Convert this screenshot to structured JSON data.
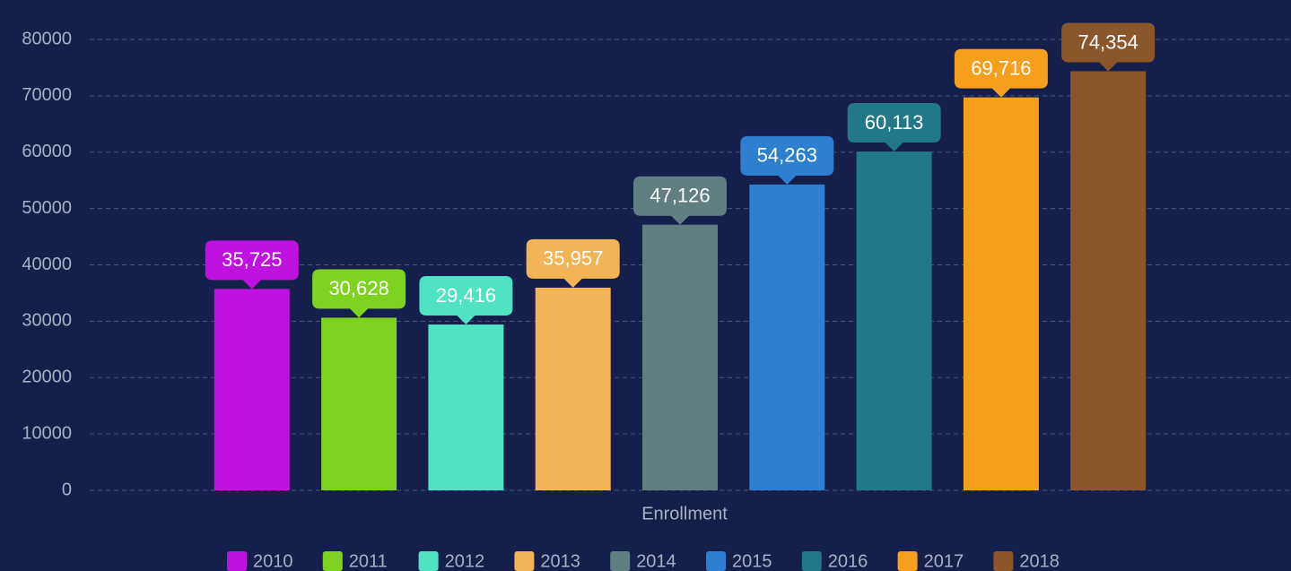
{
  "chart_data": {
    "type": "bar",
    "categories": [
      "Enrollment"
    ],
    "series": [
      {
        "name": "2010",
        "color": "#bf12e0",
        "values": [
          35725
        ],
        "value_labels": [
          "35,725"
        ]
      },
      {
        "name": "2011",
        "color": "#7ed321",
        "values": [
          30628
        ],
        "value_labels": [
          "30,628"
        ]
      },
      {
        "name": "2012",
        "color": "#50e3c2",
        "values": [
          29416
        ],
        "value_labels": [
          "29,416"
        ]
      },
      {
        "name": "2013",
        "color": "#f2b455",
        "values": [
          35957
        ],
        "value_labels": [
          "35,957"
        ]
      },
      {
        "name": "2014",
        "color": "#617e81",
        "values": [
          47126
        ],
        "value_labels": [
          "47,126"
        ]
      },
      {
        "name": "2015",
        "color": "#2e7fd0",
        "values": [
          54263
        ],
        "value_labels": [
          "54,263"
        ]
      },
      {
        "name": "2016",
        "color": "#22778a",
        "values": [
          60113
        ],
        "value_labels": [
          "60,113"
        ]
      },
      {
        "name": "2017",
        "color": "#f89e1d",
        "values": [
          69716
        ],
        "value_labels": [
          "69,716"
        ]
      },
      {
        "name": "2018",
        "color": "#8b572a",
        "values": [
          74354
        ],
        "value_labels": [
          "74,354"
        ]
      }
    ],
    "ylim": [
      0,
      80000
    ],
    "yticks": [
      0,
      10000,
      20000,
      30000,
      40000,
      50000,
      60000,
      70000,
      80000
    ],
    "grid": true,
    "legend": "bottom"
  }
}
